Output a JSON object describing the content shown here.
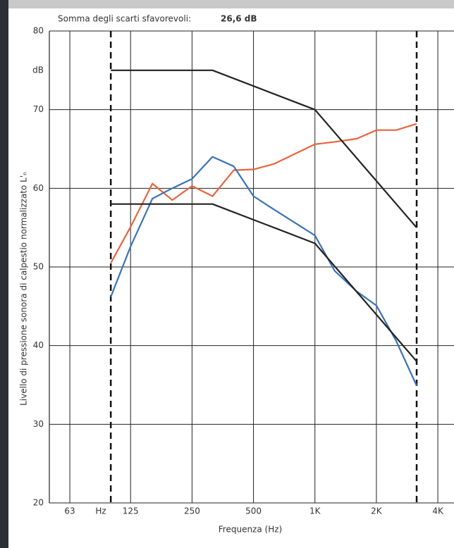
{
  "chart_data": {
    "type": "line",
    "subtitle": "Somma degli scarti sfavorevoli:",
    "subtitle_value": "26,6 dB",
    "x_label": "Frequenza (Hz)",
    "y_label": "Livello di pressione sonora di calpestio normalizzato L'ₙ",
    "x_unit_label": "Hz",
    "y_unit_label": "dB",
    "log_x": true,
    "grid": true,
    "xlim": [
      50,
      4800
    ],
    "ylim": [
      20,
      80
    ],
    "xticks": [
      63,
      125,
      250,
      500,
      {
        "value": 1000,
        "label": "1K"
      },
      {
        "value": 2000,
        "label": "2K"
      },
      {
        "value": 4000,
        "label": "4K"
      }
    ],
    "yticks": [
      20,
      30,
      40,
      50,
      60,
      70,
      80
    ],
    "limit_lines": [
      100,
      3150
    ],
    "series": [
      {
        "color": "#e8643f",
        "x": [
          100,
          125,
          160,
          200,
          250,
          315,
          400,
          500,
          630,
          800,
          1000,
          1250,
          1600,
          2000,
          2500,
          3150
        ],
        "values": [
          50.5,
          55.1,
          60.6,
          58.5,
          60.3,
          59.0,
          62.3,
          62.4,
          63.1,
          64.4,
          65.6,
          65.9,
          66.3,
          67.4,
          67.4,
          68.2
        ]
      },
      {
        "color": "#3b72b6",
        "x": [
          100,
          125,
          160,
          200,
          250,
          315,
          400,
          500,
          630,
          800,
          1000,
          1250,
          1600,
          2000,
          2500,
          3150
        ],
        "values": [
          46.2,
          52.6,
          58.7,
          60.0,
          61.2,
          64.0,
          62.8,
          59.0,
          57.3,
          55.6,
          54.0,
          49.5,
          46.9,
          45.1,
          40.6,
          34.9
        ]
      },
      {
        "color": "#222222",
        "x": [
          100,
          315,
          1000,
          3150
        ],
        "values": [
          75,
          75,
          70,
          55
        ]
      },
      {
        "color": "#222222",
        "x": [
          100,
          315,
          1000,
          3150
        ],
        "values": [
          58,
          58,
          53,
          38
        ]
      }
    ]
  }
}
